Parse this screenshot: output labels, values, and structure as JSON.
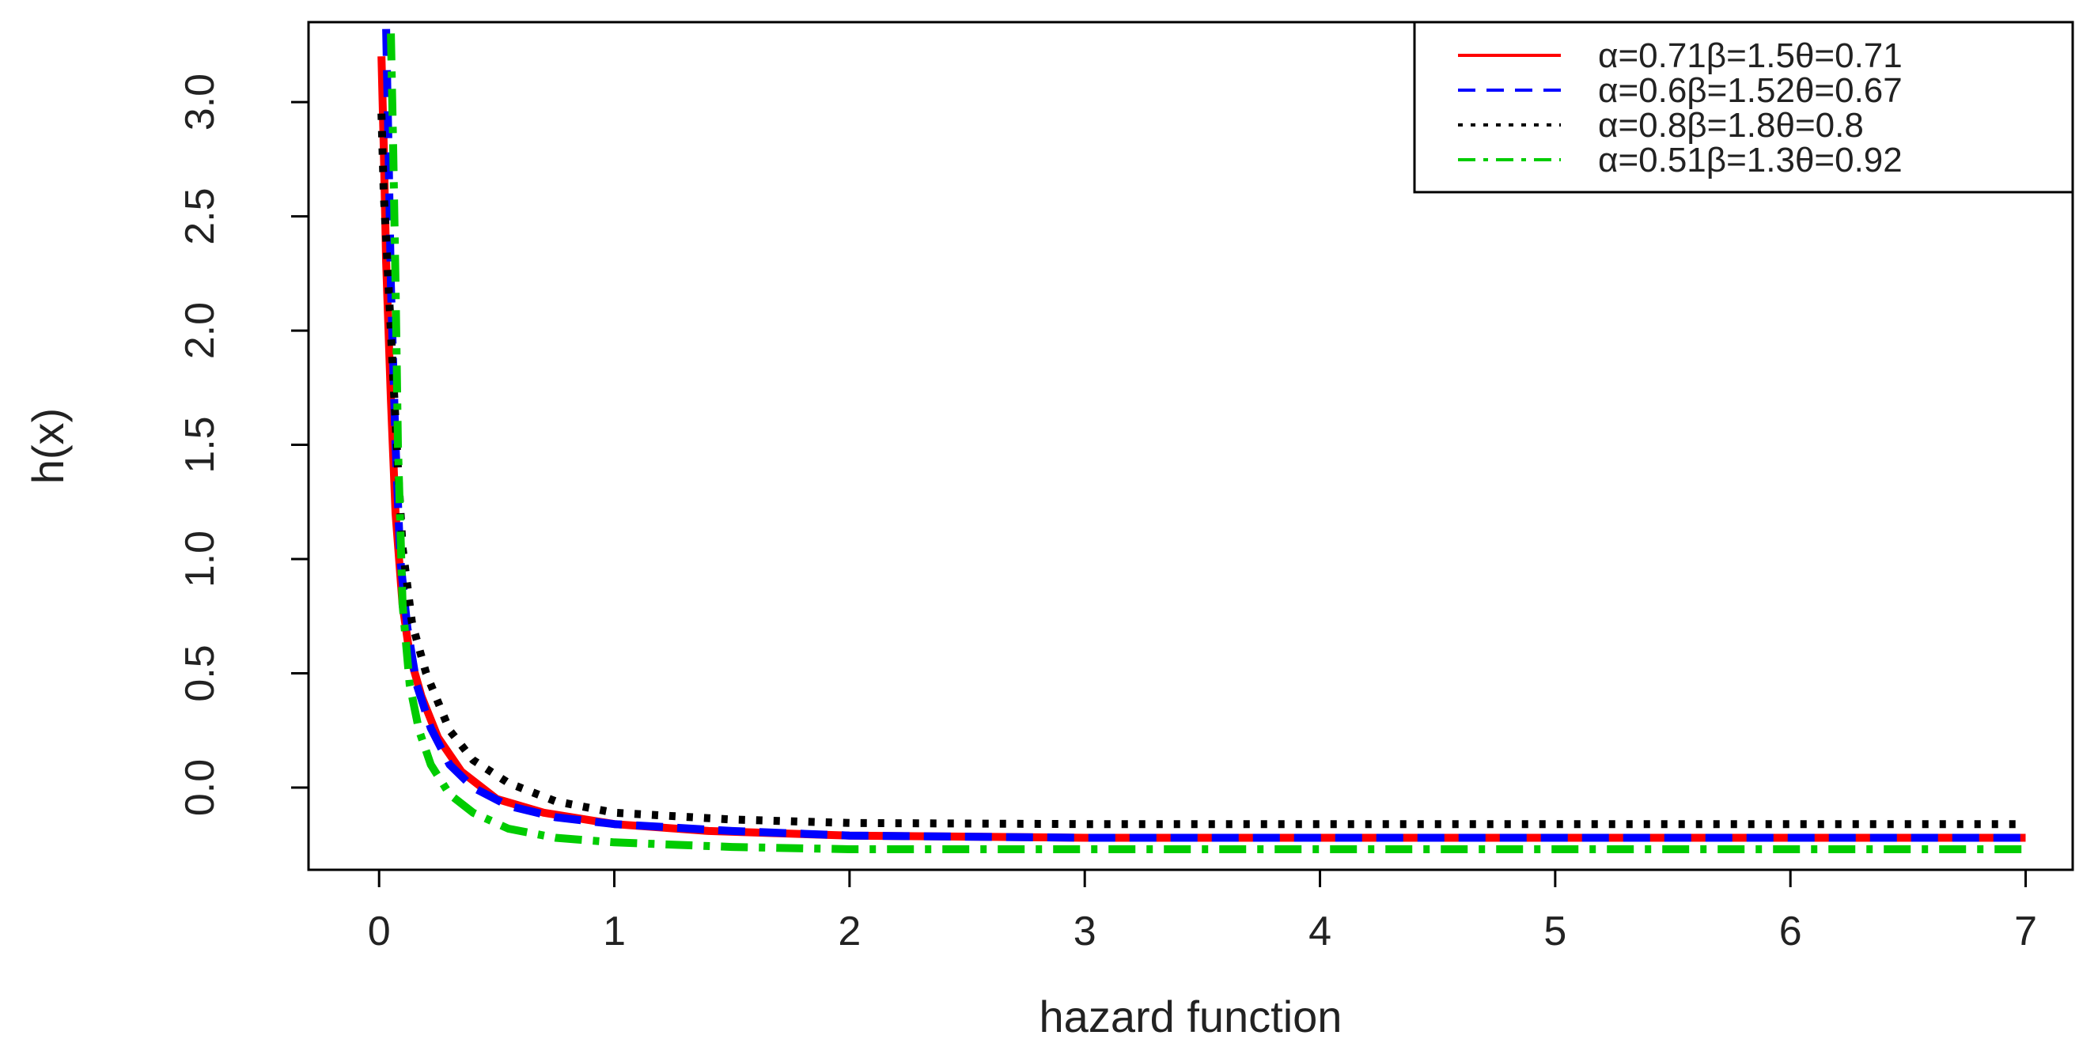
{
  "chart_data": {
    "type": "line",
    "title": "",
    "xlabel": "hazard function",
    "ylabel": "h(x)",
    "xlim": [
      -0.3,
      7.2
    ],
    "ylim": [
      -0.36,
      3.35
    ],
    "x_ticks": [
      0,
      1,
      2,
      3,
      4,
      5,
      6,
      7
    ],
    "x_tick_labels": [
      "0",
      "1",
      "2",
      "3",
      "4",
      "5",
      "6",
      "7"
    ],
    "y_ticks": [
      0.0,
      0.5,
      1.0,
      1.5,
      2.0,
      2.5,
      3.0
    ],
    "y_tick_labels": [
      "0.0",
      "0.5",
      "1.0",
      "1.5",
      "2.0",
      "2.5",
      "3.0"
    ],
    "grid": false,
    "legend_position": "top-right",
    "series": [
      {
        "name": "α=0.71β=1.5θ=0.71",
        "color": "#ff0000",
        "dash": "solid",
        "x": [
          0.01,
          0.02,
          0.03,
          0.05,
          0.07,
          0.1,
          0.13,
          0.18,
          0.25,
          0.35,
          0.5,
          0.7,
          1.0,
          1.4,
          2.0,
          3.0,
          4.0,
          5.0,
          6.0,
          7.0
        ],
        "y": [
          3.2,
          2.8,
          2.3,
          1.7,
          1.2,
          0.8,
          0.58,
          0.4,
          0.22,
          0.07,
          -0.05,
          -0.11,
          -0.16,
          -0.19,
          -0.21,
          -0.22,
          -0.22,
          -0.22,
          -0.22,
          -0.22
        ]
      },
      {
        "name": "α=0.6β=1.52θ=0.67",
        "color": "#0000ff",
        "dash": "dashed",
        "x": [
          0.03,
          0.04,
          0.05,
          0.07,
          0.09,
          0.12,
          0.16,
          0.22,
          0.3,
          0.4,
          0.55,
          0.75,
          1.0,
          1.5,
          2.0,
          3.0,
          4.0,
          5.0,
          6.0,
          7.0
        ],
        "y": [
          3.32,
          2.8,
          2.2,
          1.5,
          1.0,
          0.7,
          0.45,
          0.26,
          0.1,
          0.0,
          -0.08,
          -0.13,
          -0.16,
          -0.19,
          -0.21,
          -0.22,
          -0.22,
          -0.22,
          -0.22,
          -0.22
        ]
      },
      {
        "name": "α=0.8β=1.8θ=0.8",
        "color": "#000000",
        "dash": "dotted",
        "x": [
          0.01,
          0.02,
          0.04,
          0.06,
          0.08,
          0.1,
          0.14,
          0.2,
          0.3,
          0.4,
          0.55,
          0.75,
          1.0,
          1.5,
          2.0,
          3.0,
          4.0,
          5.0,
          6.0,
          7.0
        ],
        "y": [
          2.95,
          2.6,
          2.2,
          1.8,
          1.4,
          1.05,
          0.72,
          0.5,
          0.25,
          0.12,
          0.02,
          -0.06,
          -0.11,
          -0.14,
          -0.155,
          -0.16,
          -0.16,
          -0.16,
          -0.16,
          -0.16
        ]
      },
      {
        "name": "α=0.51β=1.3θ=0.92",
        "color": "#00cc00",
        "dash": "dashdot",
        "x": [
          0.05,
          0.06,
          0.07,
          0.08,
          0.1,
          0.13,
          0.17,
          0.22,
          0.3,
          0.4,
          0.55,
          0.75,
          1.0,
          1.5,
          2.0,
          3.0,
          4.0,
          5.0,
          6.0,
          7.0
        ],
        "y": [
          3.3,
          2.8,
          2.2,
          1.5,
          0.8,
          0.45,
          0.25,
          0.1,
          -0.03,
          -0.11,
          -0.18,
          -0.22,
          -0.24,
          -0.26,
          -0.27,
          -0.27,
          -0.27,
          -0.27,
          -0.27,
          -0.27
        ]
      }
    ]
  }
}
